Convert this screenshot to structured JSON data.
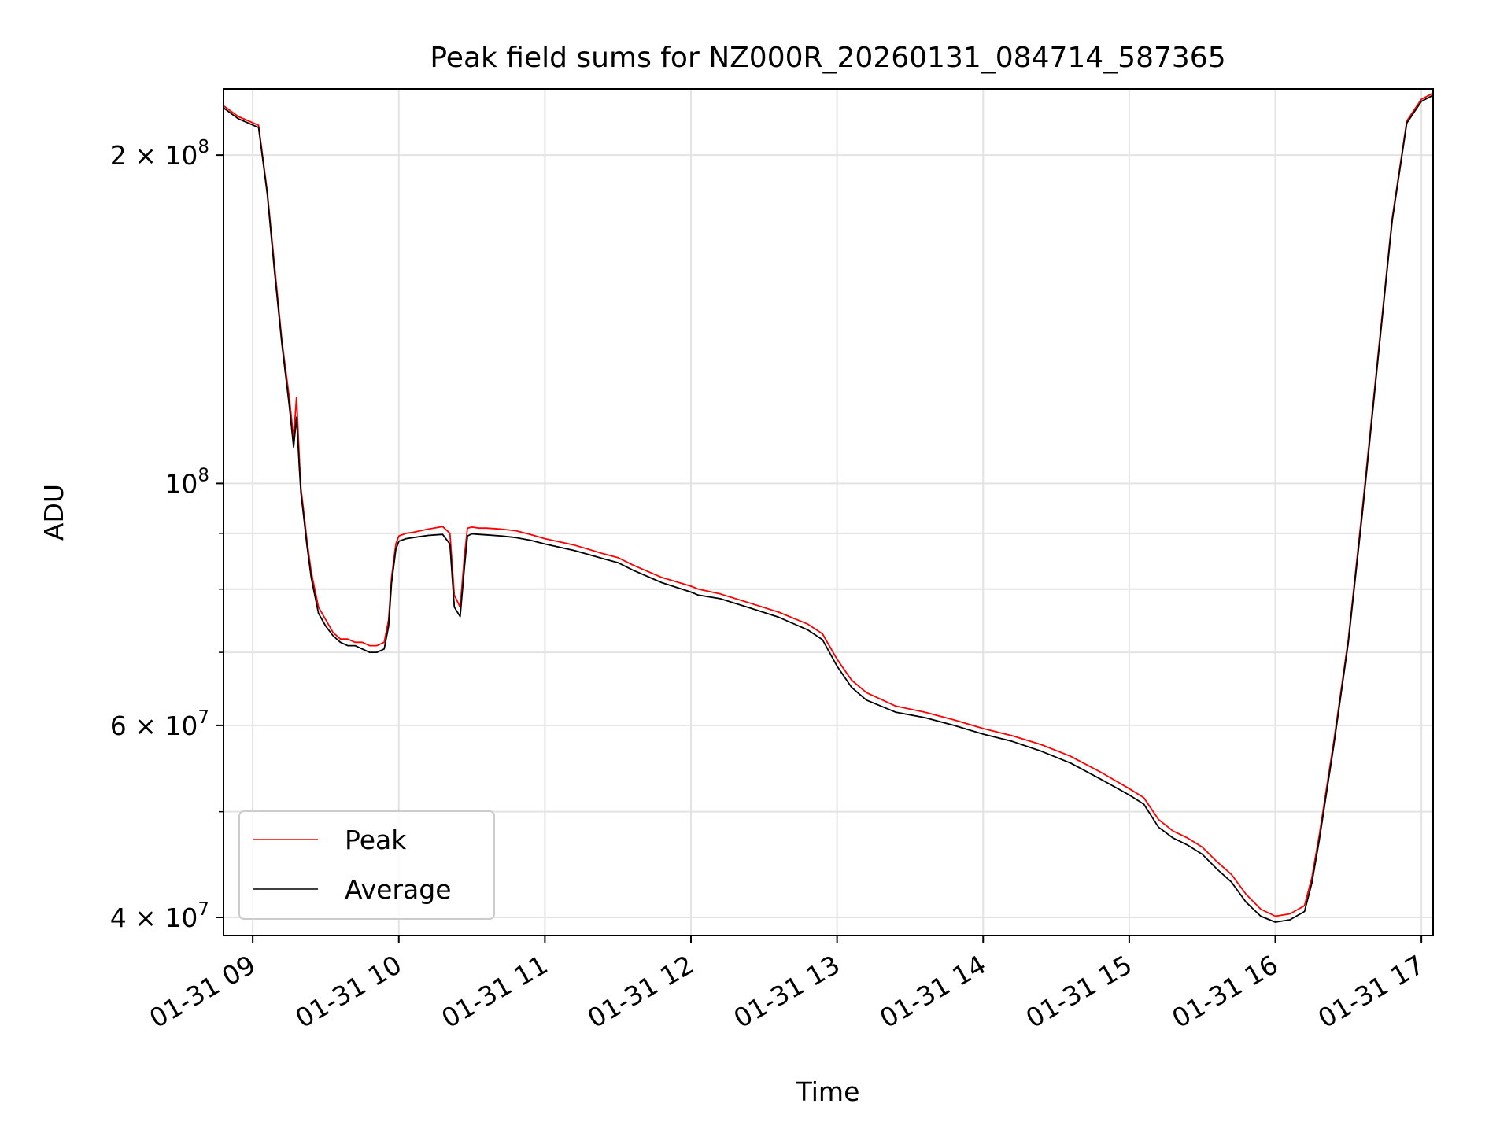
{
  "colors": {
    "peak": "#ff0000",
    "average": "#000000",
    "grid": "#e3e3e3",
    "axis": "#000000",
    "legend_border": "#cccccc"
  },
  "chart_data": {
    "type": "line",
    "title": "Peak field sums for NZ000R_20260131_084714_587365",
    "xlabel": "Time",
    "ylabel": "ADU",
    "yscale": "log",
    "xlim": [
      8.8,
      17.08
    ],
    "ylim": [
      38500000,
      230000000
    ],
    "x_ticks": [
      {
        "value": 9,
        "label": "01-31 09"
      },
      {
        "value": 10,
        "label": "01-31 10"
      },
      {
        "value": 11,
        "label": "01-31 11"
      },
      {
        "value": 12,
        "label": "01-31 12"
      },
      {
        "value": 13,
        "label": "01-31 13"
      },
      {
        "value": 14,
        "label": "01-31 14"
      },
      {
        "value": 15,
        "label": "01-31 15"
      },
      {
        "value": 16,
        "label": "01-31 16"
      },
      {
        "value": 17,
        "label": "01-31 17"
      }
    ],
    "y_major_ticks": [
      {
        "value": 40000000,
        "base": "4 × 10",
        "exp": "7"
      },
      {
        "value": 60000000,
        "base": "6 × 10",
        "exp": "7"
      },
      {
        "value": 100000000,
        "base": "10",
        "exp": "8"
      },
      {
        "value": 200000000,
        "base": "2 × 10",
        "exp": "8"
      }
    ],
    "y_minor_ticks": [
      50000000,
      70000000,
      80000000,
      90000000
    ],
    "legend": {
      "location": "lower-left",
      "entries": [
        "Peak",
        "Average"
      ]
    },
    "series": [
      {
        "name": "Peak",
        "x": [
          8.8,
          8.9,
          9.04,
          9.1,
          9.15,
          9.2,
          9.25,
          9.28,
          9.3,
          9.32,
          9.33,
          9.35,
          9.37,
          9.4,
          9.45,
          9.5,
          9.55,
          9.6,
          9.65,
          9.7,
          9.75,
          9.8,
          9.85,
          9.9,
          9.93,
          9.95,
          9.98,
          10.0,
          10.05,
          10.1,
          10.2,
          10.3,
          10.35,
          10.38,
          10.42,
          10.45,
          10.47,
          10.5,
          10.55,
          10.6,
          10.7,
          10.8,
          10.9,
          11.0,
          11.2,
          11.4,
          11.5,
          11.6,
          11.8,
          12.0,
          12.05,
          12.2,
          12.4,
          12.6,
          12.8,
          12.9,
          13.0,
          13.1,
          13.2,
          13.4,
          13.6,
          13.8,
          14.0,
          14.2,
          14.4,
          14.6,
          14.8,
          15.0,
          15.1,
          15.2,
          15.3,
          15.4,
          15.5,
          15.6,
          15.7,
          15.8,
          15.9,
          16.0,
          16.1,
          16.2,
          16.25,
          16.3,
          16.4,
          16.5,
          16.6,
          16.7,
          16.8,
          16.9,
          17.0,
          17.08
        ],
        "y": [
          222000000,
          217000000,
          213000000,
          185000000,
          158000000,
          135000000,
          120000000,
          110000000,
          120000000,
          105000000,
          99000000,
          94000000,
          89000000,
          83000000,
          77000000,
          75000000,
          73000000,
          72000000,
          72000000,
          71500000,
          71500000,
          71000000,
          71000000,
          71500000,
          75000000,
          82000000,
          88000000,
          89500000,
          90000000,
          90200000,
          90800000,
          91300000,
          90000000,
          79000000,
          77000000,
          86000000,
          91000000,
          91200000,
          91000000,
          91000000,
          90800000,
          90500000,
          89800000,
          89000000,
          87800000,
          86200000,
          85500000,
          84200000,
          82000000,
          80500000,
          80000000,
          79200000,
          77700000,
          76200000,
          74300000,
          72800000,
          69000000,
          66000000,
          64300000,
          62500000,
          61700000,
          60700000,
          59600000,
          58700000,
          57600000,
          56200000,
          54400000,
          52500000,
          51500000,
          49200000,
          48000000,
          47300000,
          46400000,
          45000000,
          43800000,
          42000000,
          40700000,
          40100000,
          40300000,
          41000000,
          43500000,
          47500000,
          58000000,
          72000000,
          96000000,
          130000000,
          175000000,
          215000000,
          225000000,
          228000000
        ]
      },
      {
        "name": "Average",
        "x": [
          8.8,
          8.9,
          9.04,
          9.1,
          9.15,
          9.2,
          9.25,
          9.28,
          9.3,
          9.32,
          9.33,
          9.35,
          9.37,
          9.4,
          9.45,
          9.5,
          9.55,
          9.6,
          9.65,
          9.7,
          9.75,
          9.8,
          9.85,
          9.9,
          9.93,
          9.95,
          9.98,
          10.0,
          10.05,
          10.1,
          10.2,
          10.3,
          10.35,
          10.38,
          10.42,
          10.45,
          10.47,
          10.5,
          10.55,
          10.6,
          10.7,
          10.8,
          10.9,
          11.0,
          11.2,
          11.4,
          11.5,
          11.6,
          11.8,
          12.0,
          12.05,
          12.2,
          12.4,
          12.6,
          12.8,
          12.9,
          13.0,
          13.1,
          13.2,
          13.4,
          13.6,
          13.8,
          14.0,
          14.2,
          14.4,
          14.6,
          14.8,
          15.0,
          15.1,
          15.2,
          15.3,
          15.4,
          15.5,
          15.6,
          15.7,
          15.8,
          15.9,
          16.0,
          16.1,
          16.2,
          16.25,
          16.3,
          16.4,
          16.5,
          16.6,
          16.7,
          16.8,
          16.9,
          17.0,
          17.08
        ],
        "y": [
          221000000,
          216000000,
          212000000,
          184000000,
          156000000,
          134000000,
          118000000,
          108000000,
          115000000,
          103000000,
          98000000,
          93000000,
          88000000,
          82000000,
          76000000,
          74000000,
          72500000,
          71500000,
          71000000,
          71000000,
          70500000,
          70000000,
          70000000,
          70500000,
          74000000,
          81000000,
          87000000,
          88500000,
          89000000,
          89200000,
          89600000,
          89800000,
          88000000,
          77000000,
          75500000,
          84000000,
          89500000,
          89900000,
          89800000,
          89700000,
          89500000,
          89200000,
          88700000,
          88000000,
          86800000,
          85300000,
          84600000,
          83300000,
          81100000,
          79500000,
          79000000,
          78400000,
          76900000,
          75400000,
          73400000,
          71900000,
          68000000,
          65000000,
          63300000,
          61700000,
          61000000,
          60000000,
          58900000,
          58000000,
          56800000,
          55400000,
          53600000,
          51800000,
          50800000,
          48400000,
          47300000,
          46600000,
          45700000,
          44300000,
          43100000,
          41300000,
          40100000,
          39600000,
          39800000,
          40500000,
          43000000,
          47000000,
          57500000,
          71500000,
          95000000,
          129000000,
          174000000,
          214000000,
          224000000,
          227000000
        ]
      }
    ]
  }
}
